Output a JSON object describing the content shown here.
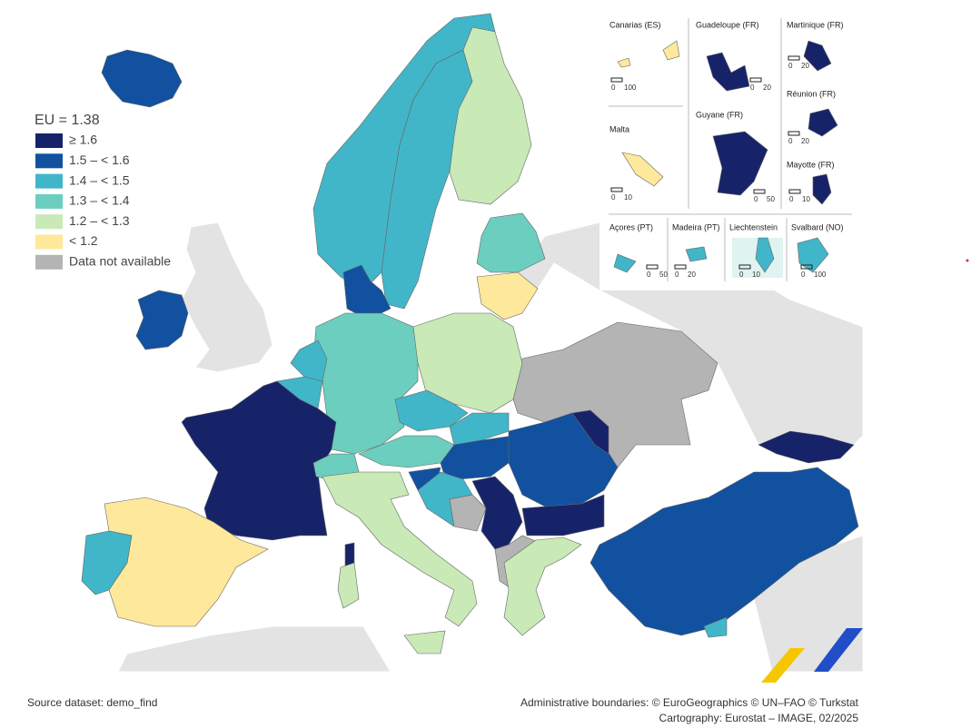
{
  "legend": {
    "title": "EU = 1.38",
    "items": [
      {
        "label": "≥ 1.6",
        "color": "#172369"
      },
      {
        "label": "1.5 – < 1.6",
        "color": "#1151a0"
      },
      {
        "label": "1.4 – < 1.5",
        "color": "#41b6c8"
      },
      {
        "label": "1.3 – < 1.4",
        "color": "#6ccebe"
      },
      {
        "label": "1.2 – < 1.3",
        "color": "#c9e9b6"
      },
      {
        "label": "< 1.2",
        "color": "#fee89b"
      },
      {
        "label": "Data not available",
        "color": "#b4b4b4"
      }
    ]
  },
  "insets": [
    {
      "label": "Canarias (ES)",
      "scale": [
        0,
        100
      ]
    },
    {
      "label": "Guadeloupe (FR)",
      "scale": [
        0,
        20
      ]
    },
    {
      "label": "Martinique (FR)",
      "scale": [
        0,
        20
      ]
    },
    {
      "label": "Réunion (FR)",
      "scale": [
        0,
        20
      ]
    },
    {
      "label": "Malta",
      "scale": [
        0,
        10
      ]
    },
    {
      "label": "Guyane (FR)",
      "scale": [
        0,
        50
      ]
    },
    {
      "label": "Mayotte (FR)",
      "scale": [
        0,
        10
      ]
    },
    {
      "label": "Açores (PT)",
      "scale": [
        0,
        50
      ]
    },
    {
      "label": "Madeira (PT)",
      "scale": [
        0,
        20
      ]
    },
    {
      "label": "Liechtenstein",
      "scale": [
        0,
        10
      ]
    },
    {
      "label": "Svalbard (NO)",
      "scale": [
        0,
        100
      ]
    }
  ],
  "footer": {
    "source": "Source dataset: demo_find",
    "boundaries": "Administrative boundaries: © EuroGeographics © UN–FAO © Turkstat",
    "cartography": "Cartography: Eurostat – IMAGE, 02/2025"
  }
}
